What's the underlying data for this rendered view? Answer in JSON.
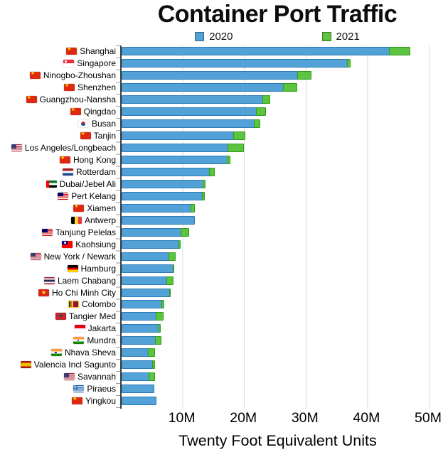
{
  "title": "Container Port Traffic",
  "legend": {
    "items": [
      {
        "label": "2020",
        "color": "#52A2D8"
      },
      {
        "label": "2021",
        "color": "#5DC43F"
      }
    ]
  },
  "x_axis": {
    "label": "Twenty Foot Equivalent Units",
    "ticks": [
      "10M",
      "20M",
      "30M",
      "40M",
      "50M"
    ]
  },
  "colors": {
    "bar_2020_fill": "#52A2D8",
    "bar_2020_stroke": "#2B7AB8",
    "bar_2021_fill": "#5DC43F",
    "bar_2021_stroke": "#2F9C1A",
    "gridline": "#dbdbdb",
    "axis_line": "#404040"
  },
  "chart_data": {
    "type": "bar",
    "orientation": "horizontal",
    "stacked": true,
    "title": "Container Port Traffic",
    "xlabel": "Twenty Foot Equivalent Units",
    "unit": "millions of TEU",
    "xlim_m": [
      0,
      51.2
    ],
    "x_tick_values_m": [
      10,
      20,
      30,
      40,
      50
    ],
    "grid": true,
    "legend_position": "top",
    "series_names": [
      "2020",
      "2021"
    ],
    "render_note": "blue bar = 2020 value; green segment = 2021 value minus 2020 value, stacked at end of blue bar",
    "ports": [
      {
        "name": "Shanghai",
        "flag": "cn",
        "teu_2020_m": 43.5,
        "teu_2021_m": 47.0
      },
      {
        "name": "Singapore",
        "flag": "sg",
        "teu_2020_m": 36.7,
        "teu_2021_m": 37.3
      },
      {
        "name": "Ninogbo-Zhoushan",
        "flag": "cn",
        "teu_2020_m": 28.6,
        "teu_2021_m": 31.0
      },
      {
        "name": "Shenzhen",
        "flag": "cn",
        "teu_2020_m": 26.3,
        "teu_2021_m": 28.6
      },
      {
        "name": "Guangzhou-Nansha",
        "flag": "cn",
        "teu_2020_m": 23.0,
        "teu_2021_m": 24.2
      },
      {
        "name": "Qingdao",
        "flag": "cn",
        "teu_2020_m": 21.9,
        "teu_2021_m": 23.6
      },
      {
        "name": "Busan",
        "flag": "kr",
        "teu_2020_m": 21.6,
        "teu_2021_m": 22.6
      },
      {
        "name": "Tanjin",
        "flag": "cn",
        "teu_2020_m": 18.3,
        "teu_2021_m": 20.2
      },
      {
        "name": "Los Angeles/Longbeach",
        "flag": "us",
        "teu_2020_m": 17.3,
        "teu_2021_m": 20.0
      },
      {
        "name": "Hong Kong",
        "flag": "cn",
        "teu_2020_m": 17.2,
        "teu_2021_m": 17.8
      },
      {
        "name": "Rotterdam",
        "flag": "nl",
        "teu_2020_m": 14.3,
        "teu_2021_m": 15.2
      },
      {
        "name": "Dubai/Jebel Ali",
        "flag": "ae",
        "teu_2020_m": 13.3,
        "teu_2021_m": 13.7
      },
      {
        "name": "Pert Kelang",
        "flag": "my",
        "teu_2020_m": 13.2,
        "teu_2021_m": 13.6
      },
      {
        "name": "Xiamen",
        "flag": "cn",
        "teu_2020_m": 11.3,
        "teu_2021_m": 12.0
      },
      {
        "name": "Antwerp",
        "flag": "be",
        "teu_2020_m": 11.9,
        "teu_2021_m": 11.9
      },
      {
        "name": "Tanjung Pelelas",
        "flag": "my",
        "teu_2020_m": 9.7,
        "teu_2021_m": 11.1
      },
      {
        "name": "Kaohsiung",
        "flag": "tw",
        "teu_2020_m": 9.4,
        "teu_2021_m": 9.7
      },
      {
        "name": "New York / Newark",
        "flag": "us",
        "teu_2020_m": 7.7,
        "teu_2021_m": 8.9
      },
      {
        "name": "Hamburg",
        "flag": "de",
        "teu_2020_m": 8.4,
        "teu_2021_m": 8.6
      },
      {
        "name": "Laem Chabang",
        "flag": "th",
        "teu_2020_m": 7.4,
        "teu_2021_m": 8.5
      },
      {
        "name": "Ho Chi Minh City",
        "flag": "vn",
        "teu_2020_m": 7.9,
        "teu_2021_m": 8.0
      },
      {
        "name": "Colombo",
        "flag": "lk",
        "teu_2020_m": 6.6,
        "teu_2021_m": 7.0
      },
      {
        "name": "Tangier Med",
        "flag": "ma",
        "teu_2020_m": 5.7,
        "teu_2021_m": 6.9
      },
      {
        "name": "Jakarta",
        "flag": "id",
        "teu_2020_m": 6.1,
        "teu_2021_m": 6.5
      },
      {
        "name": "Mundra",
        "flag": "in",
        "teu_2020_m": 5.6,
        "teu_2021_m": 6.6
      },
      {
        "name": "Nhava Sheva",
        "flag": "in",
        "teu_2020_m": 4.4,
        "teu_2021_m": 5.5
      },
      {
        "name": "Valencia Incl Sagunto",
        "flag": "es",
        "teu_2020_m": 5.1,
        "teu_2021_m": 5.6
      },
      {
        "name": "Savannah",
        "flag": "us",
        "teu_2020_m": 4.5,
        "teu_2021_m": 5.6
      },
      {
        "name": "Piraeus",
        "flag": "gr",
        "teu_2020_m": 5.3,
        "teu_2021_m": 5.3
      },
      {
        "name": "Yingkou",
        "flag": "cn",
        "teu_2020_m": 5.7,
        "teu_2021_m": 5.7
      }
    ]
  }
}
